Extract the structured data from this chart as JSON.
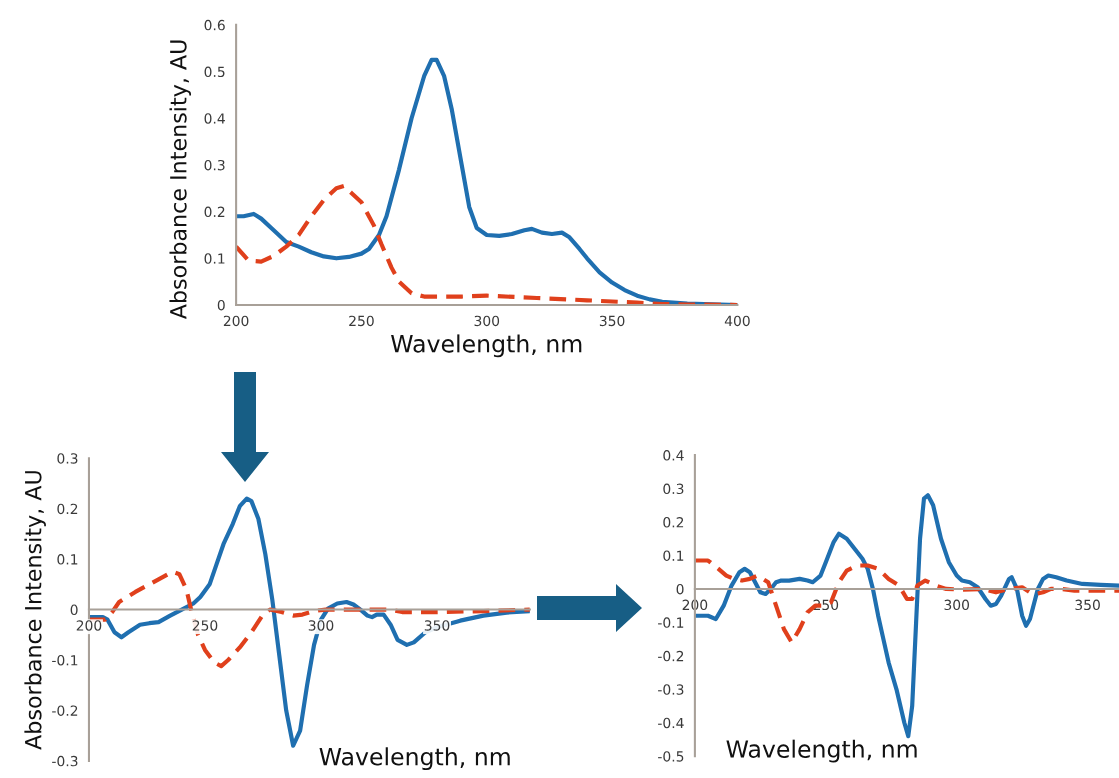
{
  "chart_data": [
    {
      "type": "line",
      "xlabel": "Wavelength, nm",
      "ylabel": "Absorbance Intensity, AU",
      "xlim": [
        200,
        400
      ],
      "ylim": [
        0,
        0.6
      ],
      "xticks": [
        200,
        250,
        300,
        350,
        400
      ],
      "yticks": [
        0,
        0.1,
        0.2,
        0.3,
        0.4,
        0.5,
        0.6
      ],
      "grid": false,
      "legend": false,
      "series": [
        {
          "color": "#1f6fb0",
          "line_style": "solid",
          "x": [
            200,
            203,
            207,
            210,
            215,
            220,
            225,
            230,
            235,
            240,
            245,
            250,
            253,
            257,
            260,
            265,
            270,
            275,
            278,
            280,
            283,
            286,
            290,
            293,
            296,
            300,
            305,
            310,
            315,
            318,
            322,
            326,
            330,
            333,
            337,
            340,
            345,
            350,
            355,
            360,
            365,
            370,
            380,
            400
          ],
          "values": [
            0.19,
            0.19,
            0.195,
            0.185,
            0.16,
            0.135,
            0.125,
            0.113,
            0.104,
            0.1,
            0.103,
            0.11,
            0.12,
            0.15,
            0.19,
            0.29,
            0.4,
            0.49,
            0.525,
            0.525,
            0.49,
            0.42,
            0.3,
            0.21,
            0.165,
            0.15,
            0.148,
            0.152,
            0.16,
            0.163,
            0.155,
            0.152,
            0.155,
            0.145,
            0.12,
            0.1,
            0.07,
            0.048,
            0.032,
            0.02,
            0.012,
            0.007,
            0.003,
            0
          ]
        },
        {
          "color": "#e0401c",
          "line_style": "dashed",
          "x": [
            200,
            205,
            210,
            215,
            220,
            225,
            230,
            235,
            240,
            243,
            246,
            250,
            255,
            258,
            262,
            265,
            270,
            275,
            280,
            290,
            300,
            320,
            340,
            360,
            370,
            380,
            400
          ],
          "values": [
            0.125,
            0.095,
            0.093,
            0.105,
            0.125,
            0.15,
            0.19,
            0.225,
            0.25,
            0.255,
            0.24,
            0.22,
            0.17,
            0.13,
            0.08,
            0.05,
            0.025,
            0.018,
            0.018,
            0.018,
            0.02,
            0.015,
            0.01,
            0.005,
            0.002,
            0.001,
            0
          ]
        }
      ]
    },
    {
      "type": "line",
      "xlabel": "Wavelength, nm",
      "ylabel": "Absorbance Intensity, AU",
      "xlim": [
        200,
        390
      ],
      "ylim": [
        -0.3,
        0.3
      ],
      "xticks": [
        200,
        250,
        300,
        350
      ],
      "yticks": [
        -0.3,
        -0.2,
        -0.1,
        0,
        0.1,
        0.2,
        0.3
      ],
      "grid": false,
      "legend": false,
      "series": [
        {
          "color": "#1f6fb0",
          "line_style": "solid",
          "x": [
            200,
            206,
            208,
            211,
            214,
            217,
            222,
            226,
            230,
            235,
            240,
            245,
            248,
            252,
            255,
            258,
            262,
            265,
            268,
            270,
            273,
            276,
            279,
            282,
            285,
            288,
            291,
            294,
            297,
            300,
            303,
            307,
            311,
            314,
            317,
            320,
            322,
            324,
            327,
            330,
            333,
            337,
            340,
            345,
            350,
            360,
            370,
            380,
            390
          ],
          "values": [
            -0.015,
            -0.015,
            -0.02,
            -0.045,
            -0.055,
            -0.045,
            -0.03,
            -0.027,
            -0.025,
            -0.012,
            0,
            0.012,
            0.025,
            0.05,
            0.09,
            0.13,
            0.17,
            0.205,
            0.22,
            0.215,
            0.18,
            0.11,
            0.02,
            -0.09,
            -0.2,
            -0.27,
            -0.24,
            -0.15,
            -0.07,
            -0.02,
            0.002,
            0.012,
            0.015,
            0.01,
            0,
            -0.012,
            -0.015,
            -0.01,
            -0.01,
            -0.03,
            -0.06,
            -0.07,
            -0.065,
            -0.045,
            -0.035,
            -0.022,
            -0.012,
            -0.006,
            -0.003
          ]
        },
        {
          "color": "#e0401c",
          "line_style": "dashed",
          "x": [
            200,
            207,
            210,
            213,
            220,
            230,
            236,
            239,
            242,
            244,
            247,
            250,
            254,
            257,
            260,
            265,
            270,
            275,
            278,
            283,
            288,
            292,
            297,
            302,
            320,
            330,
            335,
            350,
            370,
            390
          ],
          "values": [
            -0.02,
            -0.02,
            -0.005,
            0.015,
            0.035,
            0.06,
            0.075,
            0.07,
            0.04,
            0,
            -0.05,
            -0.08,
            -0.105,
            -0.112,
            -0.1,
            -0.075,
            -0.045,
            -0.01,
            0,
            -0.005,
            -0.012,
            -0.01,
            -0.003,
            0,
            0,
            0,
            -0.005,
            -0.005,
            -0.003,
            0
          ]
        }
      ]
    },
    {
      "type": "line",
      "xlabel": "Wavelength, nm",
      "xlim": [
        200,
        362
      ],
      "ylim": [
        -0.5,
        0.4
      ],
      "xticks": [
        200,
        250,
        300,
        350
      ],
      "yticks": [
        -0.5,
        -0.4,
        -0.3,
        -0.2,
        -0.1,
        0,
        0.1,
        0.2,
        0.3,
        0.4
      ],
      "grid": false,
      "legend": false,
      "series": [
        {
          "color": "#1f6fb0",
          "line_style": "solid",
          "x": [
            200,
            205,
            208,
            211,
            214,
            217,
            219,
            221,
            223,
            225,
            227,
            229,
            231,
            233,
            236,
            240,
            243,
            245,
            248,
            250,
            253,
            255,
            258,
            261,
            264,
            266,
            268,
            270,
            272,
            274,
            277,
            280,
            281.5,
            283,
            284.5,
            286,
            287.5,
            289,
            291,
            294,
            297,
            300,
            302,
            305,
            308,
            311,
            313,
            315,
            317,
            320,
            321,
            323,
            325,
            326.5,
            328,
            331,
            333,
            335,
            338,
            342,
            348,
            355,
            362
          ],
          "values": [
            -0.08,
            -0.08,
            -0.09,
            -0.05,
            0.01,
            0.05,
            0.06,
            0.05,
            0.02,
            -0.01,
            -0.015,
            0,
            0.02,
            0.025,
            0.025,
            0.03,
            0.025,
            0.02,
            0.04,
            0.08,
            0.14,
            0.165,
            0.15,
            0.12,
            0.09,
            0.06,
            0.0,
            -0.08,
            -0.15,
            -0.22,
            -0.3,
            -0.4,
            -0.44,
            -0.35,
            -0.1,
            0.15,
            0.27,
            0.28,
            0.25,
            0.15,
            0.08,
            0.04,
            0.025,
            0.02,
            0.005,
            -0.03,
            -0.05,
            -0.045,
            -0.02,
            0.03,
            0.035,
            0.0,
            -0.08,
            -0.11,
            -0.09,
            0,
            0.03,
            0.04,
            0.035,
            0.025,
            0.015,
            0.012,
            0.01
          ]
        },
        {
          "color": "#e0401c",
          "line_style": "dashed",
          "x": [
            200,
            205,
            209,
            212,
            215,
            218,
            221,
            224,
            228,
            231,
            234,
            237,
            240,
            243,
            246,
            249,
            252,
            255,
            258,
            262,
            266,
            270,
            274,
            278,
            281,
            283,
            285,
            288,
            292,
            296,
            302,
            310,
            315,
            320,
            325,
            328,
            330,
            333,
            336,
            340,
            345,
            350,
            362
          ],
          "values": [
            0.085,
            0.085,
            0.06,
            0.04,
            0.03,
            0.025,
            0.03,
            0.04,
            0.02,
            -0.05,
            -0.12,
            -0.16,
            -0.12,
            -0.07,
            -0.05,
            -0.05,
            -0.04,
            0.02,
            0.055,
            0.07,
            0.07,
            0.06,
            0.03,
            0.01,
            -0.03,
            -0.03,
            0.01,
            0.025,
            0.01,
            0.0,
            -0.002,
            0,
            -0.01,
            0,
            0.005,
            -0.01,
            -0.015,
            -0.01,
            0,
            0,
            -0.005,
            -0.005,
            -0.005
          ]
        }
      ]
    }
  ]
}
